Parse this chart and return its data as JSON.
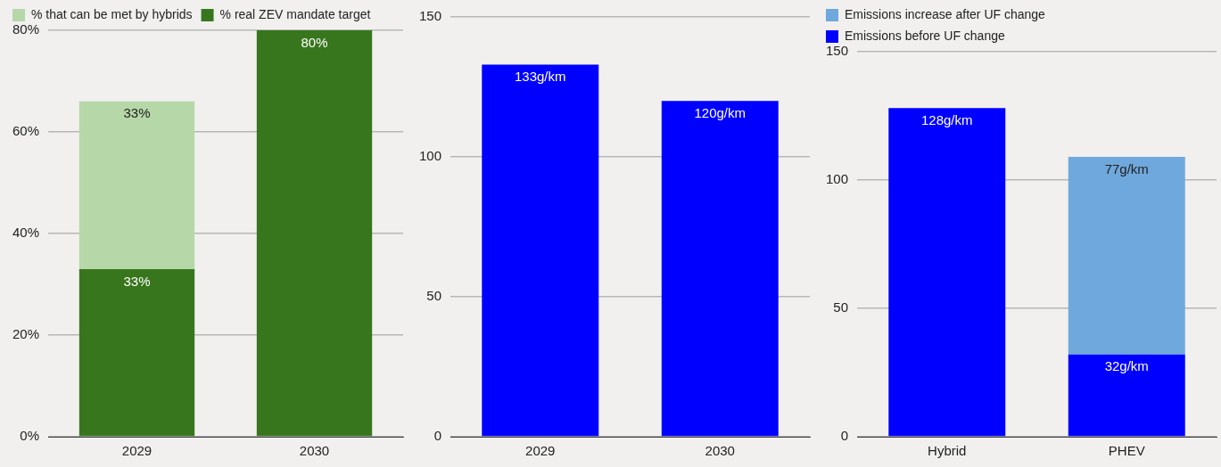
{
  "chart_data": [
    {
      "type": "bar",
      "stacked": true,
      "categories": [
        "2029",
        "2030"
      ],
      "series": [
        {
          "name": "% real ZEV mandate target",
          "color": "#38761d",
          "values": [
            33,
            80
          ],
          "value_labels": [
            "33%",
            "80%"
          ]
        },
        {
          "name": "% that can be met by hybrids",
          "color": "#b6d7a8",
          "values": [
            33,
            null
          ],
          "value_labels": [
            "33%",
            null
          ]
        }
      ],
      "ylim": [
        0,
        80
      ],
      "yticks": [
        {
          "value": 0,
          "label": "0%"
        },
        {
          "value": 20,
          "label": "20%"
        },
        {
          "value": 40,
          "label": "40%"
        },
        {
          "value": 60,
          "label": "60%"
        },
        {
          "value": 80,
          "label": "80%"
        }
      ],
      "grid": "y",
      "legend": "top left"
    },
    {
      "type": "bar",
      "categories": [
        "2029",
        "2030"
      ],
      "values": [
        133,
        120
      ],
      "color": "#0000ff",
      "value_labels": [
        "133g/km",
        "120g/km"
      ],
      "ylim": [
        0,
        150
      ],
      "yticks": [
        0,
        50,
        100,
        150
      ],
      "grid": "y"
    },
    {
      "type": "bar",
      "stacked": true,
      "categories": [
        "Hybrid",
        "PHEV"
      ],
      "series": [
        {
          "name": "Emissions before UF change",
          "color": "#0000ff",
          "values": [
            128,
            32
          ],
          "value_labels": [
            "128g/km",
            "32g/km"
          ]
        },
        {
          "name": "Emissions increase after UF change",
          "color": "#6fa8dc",
          "values": [
            null,
            77
          ],
          "value_labels": [
            null,
            "77g/km"
          ]
        }
      ],
      "ylim": [
        0,
        150
      ],
      "yticks": [
        0,
        50,
        100,
        150
      ],
      "grid": "y",
      "legend": "top left"
    }
  ]
}
